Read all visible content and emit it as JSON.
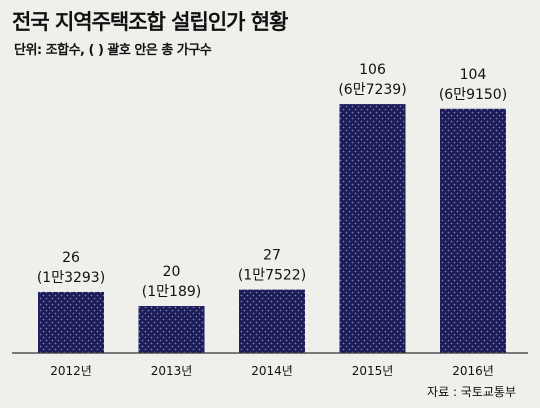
{
  "title": "전국 지역주택조합 설립인가 현황",
  "subtitle": "단위: 조합수, ( ) 괄호 안은 총 가구수",
  "source": "자료 : 국토교통부",
  "colors": {
    "bar": "#1d1d5c",
    "dot": "#8a8ab0",
    "background": "#efefeb",
    "axis": "#333333"
  },
  "chart_data": {
    "type": "bar",
    "title": "전국 지역주택조합 설립인가 현황",
    "subtitle": "단위: 조합수, ( ) 괄호 안은 총 가구수",
    "categories": [
      "2012년",
      "2013년",
      "2014년",
      "2015년",
      "2016년"
    ],
    "values": [
      26,
      20,
      27,
      106,
      104
    ],
    "value_labels": [
      "26",
      "20",
      "27",
      "106",
      "104"
    ],
    "households_labels": [
      "(1만3293)",
      "(1만189)",
      "(1만7522)",
      "(6만7239)",
      "(6만9150)"
    ],
    "households": [
      13293,
      10189,
      17522,
      67239,
      69150
    ],
    "ylim": [
      0,
      112
    ],
    "grid": false,
    "legend": "none"
  }
}
